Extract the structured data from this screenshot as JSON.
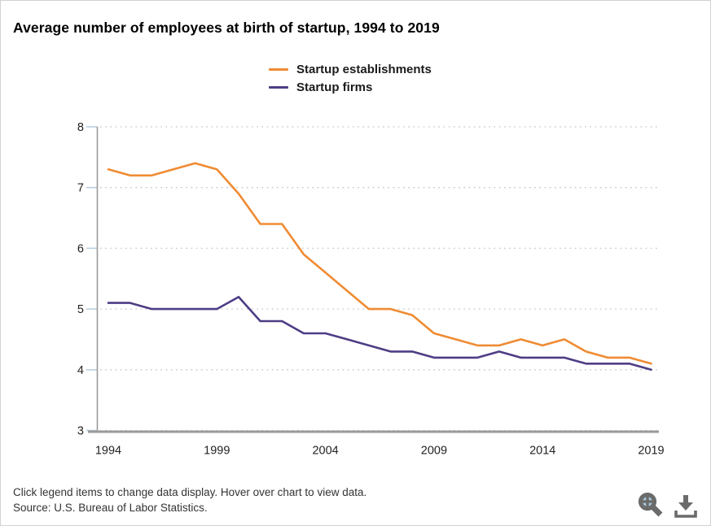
{
  "page": {
    "title": "Average number of employees at birth of startup, 1994 to 2019",
    "footer": {
      "hint": "Click legend items to change data display. Hover over chart to view data.",
      "source": "Source: U.S. Bureau of Labor Statistics."
    },
    "toolbar": {
      "icons": [
        "zoom-icon",
        "download-icon"
      ]
    },
    "colors": {
      "establishments": "#EF8B33",
      "firms": "#4E3D85",
      "gridline": "#c3c3c3",
      "axis": "#9a9a9a",
      "tick": "#b9cfe0",
      "icon_gray": "#6b6b6b",
      "icon_lens_blue": "#aac8dd"
    }
  },
  "chart_data": {
    "type": "line",
    "title": "Average number of employees at birth of startup, 1994 to 2019",
    "x": [
      1994,
      1995,
      1996,
      1997,
      1998,
      1999,
      2000,
      2001,
      2002,
      2003,
      2004,
      2005,
      2006,
      2007,
      2008,
      2009,
      2010,
      2011,
      2012,
      2013,
      2014,
      2015,
      2016,
      2017,
      2018,
      2019
    ],
    "series": [
      {
        "name": "Startup establishments",
        "color": "#EF8B33",
        "values": [
          7.3,
          7.2,
          7.2,
          7.3,
          7.4,
          7.3,
          6.9,
          6.4,
          6.4,
          5.9,
          5.6,
          5.3,
          5.0,
          5.0,
          4.9,
          4.6,
          4.5,
          4.4,
          4.4,
          4.5,
          4.4,
          4.5,
          4.3,
          4.2,
          4.2,
          4.1
        ]
      },
      {
        "name": "Startup firms",
        "color": "#4E3D85",
        "values": [
          5.1,
          5.1,
          5.0,
          5.0,
          5.0,
          5.0,
          5.2,
          4.8,
          4.8,
          4.6,
          4.6,
          4.5,
          4.4,
          4.3,
          4.3,
          4.2,
          4.2,
          4.2,
          4.3,
          4.2,
          4.2,
          4.2,
          4.1,
          4.1,
          4.1,
          4.0
        ]
      }
    ],
    "xlabel": "",
    "ylabel": "",
    "ylim": [
      3,
      8
    ],
    "yticks": [
      3,
      4,
      5,
      6,
      7,
      8
    ],
    "xticks": [
      1994,
      1999,
      2004,
      2009,
      2014,
      2019
    ],
    "grid": "horizontal-dotted",
    "legend_position": "top-center"
  }
}
